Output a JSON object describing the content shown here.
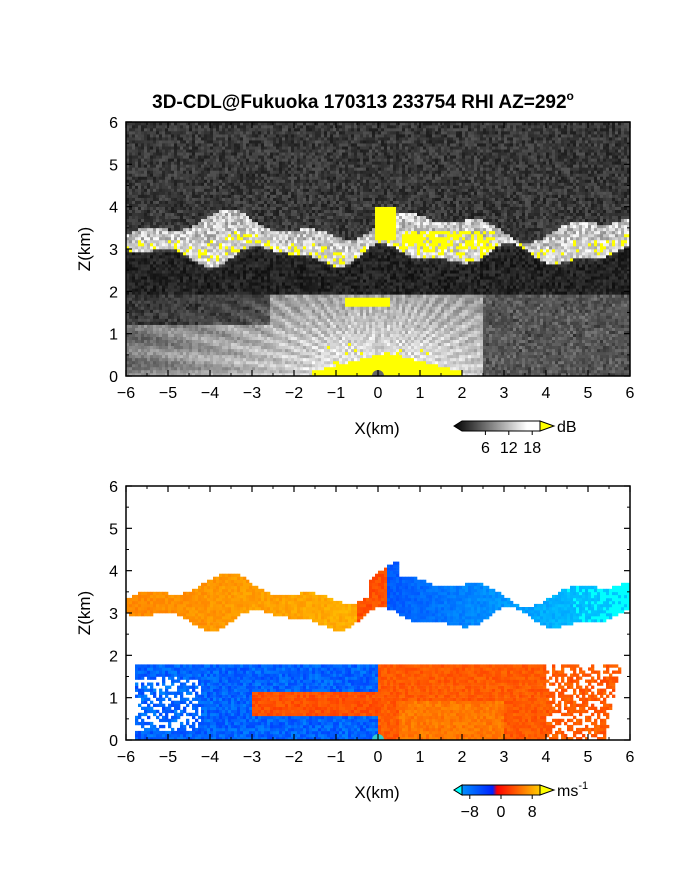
{
  "chart_data": [
    {
      "type": "heatmap",
      "title": "3D-CDL@Fukuoka 170313 233754 RHI AZ=292",
      "title_superscript": "o",
      "xlabel": "X(km)",
      "ylabel": "Z(km)",
      "xlim": [
        -6,
        6
      ],
      "ylim": [
        0,
        6
      ],
      "xticks": [
        -6,
        -5,
        -4,
        -3,
        -2,
        -1,
        0,
        1,
        2,
        3,
        4,
        5,
        6
      ],
      "yticks": [
        0,
        1,
        2,
        3,
        4,
        5,
        6
      ],
      "colorbar": {
        "unit": "dB",
        "ticks": [
          6,
          12,
          18
        ],
        "range": [
          0,
          20
        ],
        "colormap": "grayscale to white, yellow above top",
        "colors": {
          "low": "#000000",
          "high": "#ffffff",
          "over": "#ffff00"
        }
      },
      "features": [
        {
          "name": "cloud layer",
          "z_range_km": [
            2.8,
            3.8
          ],
          "x_range_km": [
            -6,
            6
          ]
        },
        {
          "name": "lower echo region",
          "z_range_km": [
            0,
            1.9
          ],
          "x_range_km": [
            -6,
            2.5
          ]
        },
        {
          "name": "strong echo near radar",
          "z_range_km": [
            0,
            0.6
          ],
          "x_range_km": [
            -1.5,
            2
          ]
        }
      ]
    },
    {
      "type": "heatmap",
      "xlabel": "X(km)",
      "ylabel": "Z(km)",
      "xlim": [
        -6,
        6
      ],
      "ylim": [
        0,
        6
      ],
      "xticks": [
        -6,
        -5,
        -4,
        -3,
        -2,
        -1,
        0,
        1,
        2,
        3,
        4,
        5,
        6
      ],
      "yticks": [
        0,
        1,
        2,
        3,
        4,
        5,
        6
      ],
      "colorbar": {
        "unit": "ms",
        "unit_superscript": "-1",
        "ticks": [
          -8,
          0,
          8
        ],
        "range": [
          -10,
          10
        ],
        "colors": {
          "under": "#00ffff",
          "negative": "#0033ff",
          "zero": "#ff0000",
          "positive": "#ffcc00"
        }
      },
      "features": [
        {
          "name": "cloud layer westward",
          "z_range_km": [
            2.8,
            3.6
          ],
          "x_range_km": [
            -6,
            -0.8
          ],
          "velocity_ms": 7
        },
        {
          "name": "cloud layer eastward",
          "z_range_km": [
            2.6,
            4.1
          ],
          "x_range_km": [
            0.3,
            6
          ],
          "velocity_ms": -7
        },
        {
          "name": "lower layer west",
          "z_range_km": [
            0,
            1.8
          ],
          "x_range_km": [
            -6,
            0
          ],
          "velocity_ms": -4
        },
        {
          "name": "lower layer east",
          "z_range_km": [
            0,
            1.8
          ],
          "x_range_km": [
            0,
            6
          ],
          "velocity_ms": 3
        }
      ]
    }
  ]
}
